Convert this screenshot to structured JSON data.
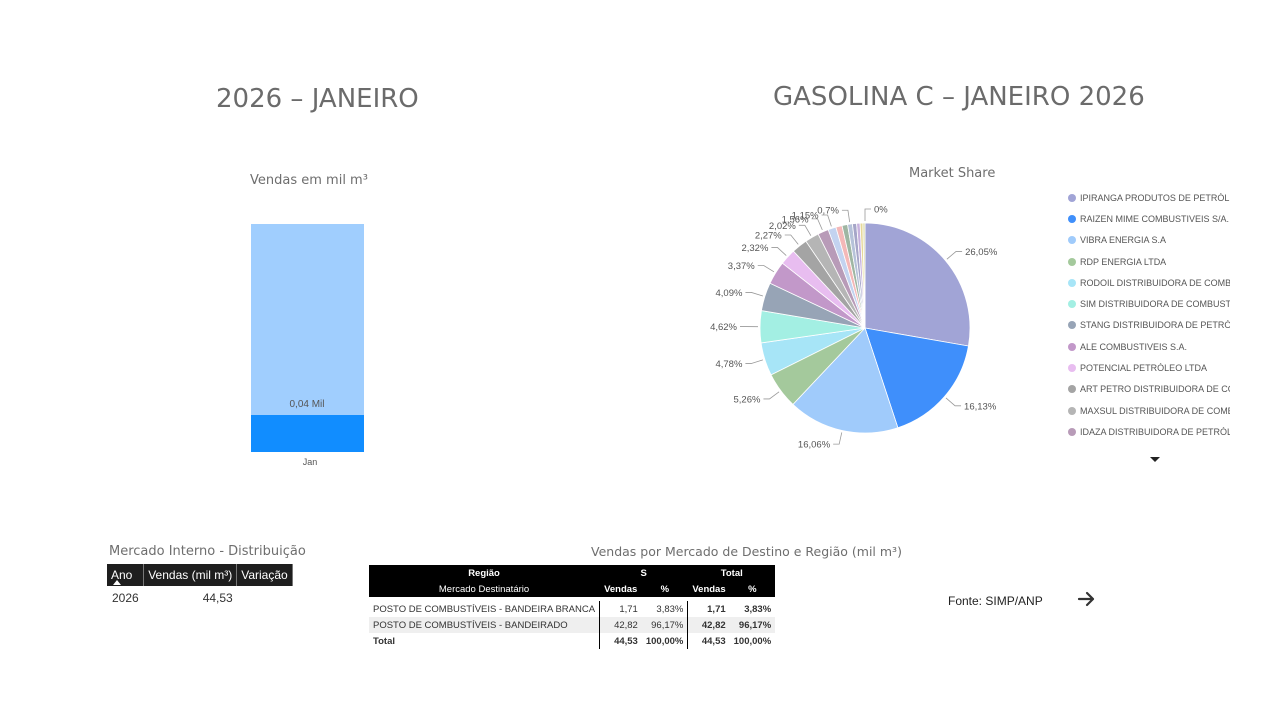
{
  "left_title": "2026 – JANEIRO",
  "right_title": "GASOLINA C – JANEIRO 2026",
  "sales_chart": {
    "subtitle": "Vendas  em mil m³",
    "chart_data": {
      "type": "bar",
      "stacked": true,
      "categories": [
        "Jan"
      ],
      "series": [
        {
          "values": [
            44.49
          ],
          "color": "#a0cefe"
        },
        {
          "values": [
            0.04
          ],
          "color": "#118dff"
        }
      ],
      "data_labels": [
        "0,04 Mil"
      ]
    }
  },
  "market_share": {
    "subtitle": "Market Share",
    "legend": [
      {
        "label": "IPIRANGA PRODUTOS DE PETRÓLE...",
        "color": "#a1a4d6"
      },
      {
        "label": "RAIZEN MIME COMBUSTIVEIS S/A.",
        "color": "#3f8ffb"
      },
      {
        "label": "VIBRA ENERGIA S.A",
        "color": "#a0cbfb"
      },
      {
        "label": "RDP ENERGIA LTDA",
        "color": "#a4c99c"
      },
      {
        "label": "RODOIL DISTRIBUIDORA DE COMB...",
        "color": "#a7e5f7"
      },
      {
        "label": "SIM DISTRIBUIDORA DE COMBUSTI...",
        "color": "#a3efe3"
      },
      {
        "label": "STANG DISTRIBUIDORA DE PETRÓL...",
        "color": "#97a4b6"
      },
      {
        "label": "ALE COMBUSTIVEIS S.A.",
        "color": "#c298c9"
      },
      {
        "label": "POTENCIAL PETRÓLEO LTDA",
        "color": "#e8bdf0"
      },
      {
        "label": "ART PETRO DISTRIBUIDORA DE CO...",
        "color": "#a4a4a4"
      },
      {
        "label": "MAXSUL DISTRIBUIDORA DE COMB...",
        "color": "#b5b5b5"
      },
      {
        "label": "IDAZA DISTRIBUIDORA DE PETRÓLE...",
        "color": "#b89bb8"
      }
    ],
    "chart_data": {
      "type": "pie",
      "values": [
        26.05,
        16.13,
        16.06,
        5.26,
        4.78,
        4.62,
        4.09,
        3.37,
        2.32,
        2.27,
        2.02,
        1.56,
        1.15,
        0.9,
        0.8,
        0.7,
        0.6,
        0.5,
        0.4,
        0.3,
        0.0
      ],
      "labels": [
        "26,05%",
        "16,13%",
        "16,06%",
        "5,26%",
        "4,78%",
        "4,62%",
        "4,09%",
        "3,37%",
        "2,32%",
        "2,27%",
        "2,02%",
        "1,56%",
        "1,15%",
        "",
        "",
        "0,7%",
        "",
        "",
        "",
        "",
        "0%"
      ],
      "colors": [
        "#a1a4d6",
        "#3f8ffb",
        "#a0cbfb",
        "#a4c99c",
        "#a7e5f7",
        "#a3efe3",
        "#97a4b6",
        "#c298c9",
        "#e8bdf0",
        "#a4a4a4",
        "#b5b5b5",
        "#b89bb8",
        "#c3d3f0",
        "#f4b8b8",
        "#9fb6a3",
        "#b6c2d9",
        "#a6a6c8",
        "#c7b2de",
        "#e6d899",
        "#d9d9a8",
        "#bcdcbc"
      ]
    }
  },
  "mercado_interno": {
    "title": "Mercado Interno - Distribuição",
    "headers": [
      "Ano",
      "Vendas (mil m³)",
      "Variação"
    ],
    "rows": [
      [
        "2026",
        "44,53",
        ""
      ]
    ]
  },
  "destino": {
    "title": "Vendas por Mercado de Destino e Região (mil m³)",
    "header_region": "Região",
    "header_s": "S",
    "header_total": "Total",
    "header_mercado": "Mercado Destinatário",
    "header_vendas": "Vendas",
    "header_pct": "%",
    "rows": [
      {
        "mercado": "POSTO DE COMBUSTÍVEIS - BANDEIRA BRANCA",
        "s_vendas": "1,71",
        "s_pct": "3,83%",
        "t_vendas": "1,71",
        "t_pct": "3,83%"
      },
      {
        "mercado": "POSTO DE COMBUSTÍVEIS - BANDEIRADO",
        "s_vendas": "42,82",
        "s_pct": "96,17%",
        "t_vendas": "42,82",
        "t_pct": "96,17%"
      }
    ],
    "total": {
      "label": "Total",
      "s_vendas": "44,53",
      "s_pct": "100,00%",
      "t_vendas": "44,53",
      "t_pct": "100,00%"
    }
  },
  "fonte": "Fonte: SIMP/ANP",
  "icons": {
    "next": "arrow-right-icon",
    "legend_more": "caret-down-icon",
    "sort": "sort-ascending-icon"
  }
}
